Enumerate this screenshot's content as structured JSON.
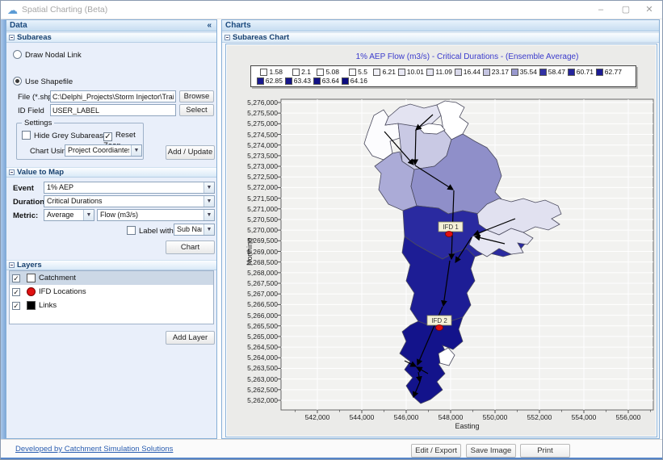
{
  "window": {
    "title": "Spatial Charting (Beta)",
    "minimize": "–",
    "maximize": "▢",
    "close": "✕"
  },
  "data_panel": {
    "header": "Data",
    "collapse_glyph": "«",
    "subareas": {
      "header": "Subareas",
      "radio_draw_nodal_link": "Draw Nodal Link",
      "radio_use_shapefile": "Use Shapefile",
      "file_label": "File (*.shp)",
      "file_value": "C:\\Delphi_Projects\\Storm Injector\\Training\\Trainir",
      "browse_button": "Browse",
      "id_field_label": "ID Field",
      "id_field_value": "USER_LABEL",
      "select_button": "Select",
      "settings": {
        "header": "Settings",
        "hide_grey_subareas": "Hide Grey Subareas",
        "reset_zoom": "Reset Zoon",
        "chart_using_label": "Chart Using",
        "chart_using_value": "Project Coordiantes"
      },
      "add_update_button": "Add / Update"
    },
    "value_to_map": {
      "header": "Value to Map",
      "event_label": "Event",
      "event_value": "1% AEP",
      "duration_label": "Duration",
      "duration_value": "Critical Durations",
      "metric_label": "Metric:",
      "metric_stat_value": "Average",
      "metric_type_value": "Flow (m3/s)",
      "label_with": "Label with",
      "label_with_value": "Sub Name",
      "chart_button": "Chart"
    },
    "layers": {
      "header": "Layers",
      "items": [
        {
          "label": "Catchment",
          "checked": true,
          "swatch": "white-square"
        },
        {
          "label": "IFD Locations",
          "checked": true,
          "swatch": "red-circle"
        },
        {
          "label": "Links",
          "checked": true,
          "swatch": "black-square"
        }
      ],
      "add_layer_button": "Add Layer"
    }
  },
  "charts_panel": {
    "header": "Charts",
    "sub_header": "Subareas Chart"
  },
  "chart_data": {
    "type": "choropleth-map",
    "title": "1% AEP Flow (m3/s) - Critical Durations - (Ensemble Average)",
    "xlabel": "Easting",
    "ylabel": "Northing",
    "xlim": [
      540400,
      557100
    ],
    "ylim": [
      5261550,
      5276150
    ],
    "grid": true,
    "x_ticks": [
      "542,000",
      "544,000",
      "546,000",
      "548,000",
      "550,000",
      "552,000",
      "554,000",
      "556,000"
    ],
    "y_ticks": [
      "5,276,000",
      "5,275,500",
      "5,275,000",
      "5,274,500",
      "5,274,000",
      "5,273,500",
      "5,273,000",
      "5,272,500",
      "5,272,000",
      "5,271,500",
      "5,271,000",
      "5,270,500",
      "5,270,000",
      "5,269,500",
      "5,269,000",
      "5,268,500",
      "5,268,000",
      "5,267,500",
      "5,267,000",
      "5,266,500",
      "5,266,000",
      "5,265,500",
      "5,265,000",
      "5,264,500",
      "5,264,000",
      "5,263,500",
      "5,263,000",
      "5,262,500",
      "5,262,000"
    ],
    "legend": {
      "position": "top",
      "items": [
        {
          "value": "1.58",
          "color": "#FFFFFF"
        },
        {
          "value": "2.1",
          "color": "#FFFFFF"
        },
        {
          "value": "5.08",
          "color": "#FDFDFE"
        },
        {
          "value": "5.5",
          "color": "#FAFAFD"
        },
        {
          "value": "6.21",
          "color": "#F1F1F8"
        },
        {
          "value": "10.01",
          "color": "#E9E9F5"
        },
        {
          "value": "11.09",
          "color": "#E5E5F2"
        },
        {
          "value": "16.44",
          "color": "#D9D9EB"
        },
        {
          "value": "23.17",
          "color": "#C5C5E2"
        },
        {
          "value": "35.54",
          "color": "#9999CE"
        },
        {
          "value": "58.47",
          "color": "#3131A4"
        },
        {
          "value": "60.71",
          "color": "#25259C"
        },
        {
          "value": "62.77",
          "color": "#1B1B94"
        },
        {
          "value": "62.85",
          "color": "#191990"
        },
        {
          "value": "63.43",
          "color": "#15158A"
        },
        {
          "value": "63.64",
          "color": "#111186"
        },
        {
          "value": "64.16",
          "color": "#0B0B80"
        }
      ]
    },
    "ifd_locations": [
      {
        "label": "IFD 1",
        "easting": 547900,
        "northing": 5269900
      },
      {
        "label": "IFD 2",
        "easting": 547500,
        "northing": 5265500
      }
    ]
  },
  "footer": {
    "credit_link": "Developed by Catchment Simulation Solutions",
    "edit_export_button": "Edit / Export",
    "save_image_button": "Save Image",
    "print_button": "Print"
  }
}
